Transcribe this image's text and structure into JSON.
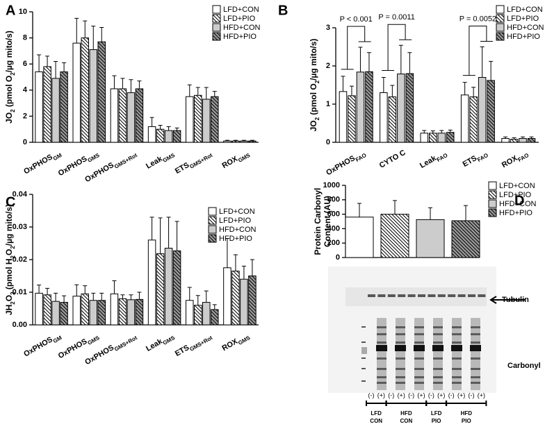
{
  "chart_data": [
    {
      "type": "bar",
      "panel_label": "A",
      "ylabel": [
        "JO",
        "2",
        " (pmol O",
        "2",
        "/µg mito/s)"
      ],
      "categories": [
        "OxPHOS",
        "OxPHOS",
        "OxPHOS",
        "Leak",
        "ETS",
        "ROX"
      ],
      "category_subscripts": [
        "GM",
        "GMS",
        "GMS+Rot",
        "GMS",
        "GMS+Rot",
        "GMS"
      ],
      "ylim": [
        0,
        10
      ],
      "yticks": [
        0,
        2,
        4,
        6,
        8,
        10
      ],
      "series": [
        {
          "name": "LFD+CON",
          "color": "#ffffff",
          "hatch": false,
          "values": [
            5.4,
            7.6,
            4.1,
            1.2,
            3.5,
            0.1
          ],
          "errors": [
            1.3,
            1.9,
            1.0,
            0.7,
            0.9,
            0.05
          ]
        },
        {
          "name": "LFD+PIO",
          "color": "#ffffff",
          "hatch": true,
          "values": [
            5.8,
            8.0,
            4.1,
            1.0,
            3.6,
            0.1
          ],
          "errors": [
            0.8,
            1.3,
            0.8,
            0.3,
            0.6,
            0.05
          ]
        },
        {
          "name": "HFD+CON",
          "color": "#cccccc",
          "hatch": false,
          "values": [
            4.9,
            7.1,
            3.8,
            0.9,
            3.3,
            0.1
          ],
          "errors": [
            1.3,
            1.8,
            1.0,
            0.3,
            0.9,
            0.05
          ]
        },
        {
          "name": "HFD+PIO",
          "color": "#999999",
          "hatch": true,
          "values": [
            5.4,
            7.7,
            4.1,
            0.9,
            3.5,
            0.1
          ],
          "errors": [
            0.7,
            1.1,
            0.6,
            0.2,
            0.4,
            0.05
          ]
        }
      ]
    },
    {
      "type": "bar",
      "panel_label": "B",
      "ylabel": [
        "JO",
        "2",
        " (pmol O",
        "2",
        "/µg mito/s)"
      ],
      "categories": [
        "OxPHOS",
        "CYTO C",
        "Leak",
        "ETS",
        "ROX"
      ],
      "category_subscripts": [
        "FAO",
        null,
        "FAO",
        "FAO",
        "FAO"
      ],
      "ylim": [
        0,
        3
      ],
      "yticks": [
        0,
        1,
        2,
        3
      ],
      "annotations": [
        "P < 0.001",
        "P = 0.0011",
        "P = 0.0052"
      ],
      "series": [
        {
          "name": "LFD+CON",
          "color": "#ffffff",
          "hatch": false,
          "values": [
            1.33,
            1.3,
            0.24,
            1.24,
            0.1
          ],
          "errors": [
            0.4,
            0.4,
            0.07,
            0.33,
            0.04
          ]
        },
        {
          "name": "LFD+PIO",
          "color": "#ffffff",
          "hatch": true,
          "values": [
            1.22,
            1.19,
            0.24,
            1.19,
            0.08
          ],
          "errors": [
            0.25,
            0.3,
            0.06,
            0.25,
            0.04
          ]
        },
        {
          "name": "HFD+CON",
          "color": "#cccccc",
          "hatch": false,
          "values": [
            1.84,
            1.79,
            0.24,
            1.7,
            0.1
          ],
          "errors": [
            0.65,
            0.75,
            0.07,
            0.8,
            0.04
          ]
        },
        {
          "name": "HFD+PIO",
          "color": "#999999",
          "hatch": true,
          "values": [
            1.85,
            1.8,
            0.26,
            1.62,
            0.1
          ],
          "errors": [
            0.5,
            0.55,
            0.06,
            0.5,
            0.04
          ]
        }
      ]
    },
    {
      "type": "bar",
      "panel_label": "C",
      "ylabel": [
        "JH",
        "2",
        "O",
        "2",
        " (pmol H",
        "2",
        "O",
        "2",
        "/µg mito/s)"
      ],
      "categories": [
        "OxPHOS",
        "OxPHOS",
        "OxPHOS",
        "Leak",
        "ETS",
        "ROX"
      ],
      "category_subscripts": [
        "GM",
        "GMS",
        "GMS+Rot",
        "GMS",
        "GMS+Rot",
        "GMS"
      ],
      "ylim": [
        0,
        0.04
      ],
      "yticks": [
        {
          "value": 0,
          "label": "0.00"
        },
        0.01,
        0.02,
        0.03,
        0.04
      ],
      "series": [
        {
          "name": "LFD+CON",
          "color": "#ffffff",
          "hatch": false,
          "values": [
            0.0097,
            0.0088,
            0.0095,
            0.026,
            0.0075,
            0.0175
          ],
          "errors": [
            0.0025,
            0.0035,
            0.004,
            0.007,
            0.004,
            0.009
          ]
        },
        {
          "name": "LFD+PIO",
          "color": "#ffffff",
          "hatch": true,
          "values": [
            0.0092,
            0.0095,
            0.008,
            0.0218,
            0.006,
            0.0165
          ],
          "errors": [
            0.002,
            0.0025,
            0.0012,
            0.011,
            0.003,
            0.005
          ]
        },
        {
          "name": "HFD+CON",
          "color": "#cccccc",
          "hatch": false,
          "values": [
            0.0072,
            0.0075,
            0.0077,
            0.0235,
            0.0069,
            0.014
          ],
          "errors": [
            0.0025,
            0.0022,
            0.0015,
            0.0095,
            0.0035,
            0.004
          ]
        },
        {
          "name": "HFD+PIO",
          "color": "#999999",
          "hatch": true,
          "values": [
            0.0069,
            0.0075,
            0.0078,
            0.0227,
            0.0047,
            0.015
          ],
          "errors": [
            0.002,
            0.0022,
            0.0022,
            0.009,
            0.0015,
            0.005
          ]
        }
      ]
    },
    {
      "type": "bar",
      "panel_label": "D",
      "ylabel": [
        "Protein Carbonyl",
        "Content (AU)"
      ],
      "categories": [
        null
      ],
      "ylim": [
        0,
        1000
      ],
      "yticks": [
        0,
        200,
        400,
        600,
        800,
        1000
      ],
      "series": [
        {
          "name": "LFD+CON",
          "color": "#ffffff",
          "hatch": false,
          "values": [
            560
          ],
          "errors": [
            190
          ]
        },
        {
          "name": "LFD+PIO",
          "color": "#ffffff",
          "hatch": true,
          "values": [
            600
          ],
          "errors": [
            190
          ]
        },
        {
          "name": "HFD+CON",
          "color": "#cccccc",
          "hatch": false,
          "values": [
            525
          ],
          "errors": [
            165
          ]
        },
        {
          "name": "HFD+PIO",
          "color": "#999999",
          "hatch": true,
          "values": [
            510
          ],
          "errors": [
            210
          ]
        }
      ]
    }
  ],
  "blot": {
    "tubulin_label": "Tubulin",
    "carbonyl_label": "Carbonyl",
    "lane_signs": [
      "(-)",
      "(+)",
      "(-)",
      "(+)",
      "(-)",
      "(+)",
      "(-)",
      "(+)",
      "(-)",
      "(+)",
      "(-)",
      "(+)"
    ],
    "groups": [
      [
        "LFD",
        "CON"
      ],
      [
        "HFD",
        "CON"
      ],
      [
        "LFD",
        "PIO"
      ],
      [
        "HFD",
        "PIO"
      ]
    ]
  }
}
